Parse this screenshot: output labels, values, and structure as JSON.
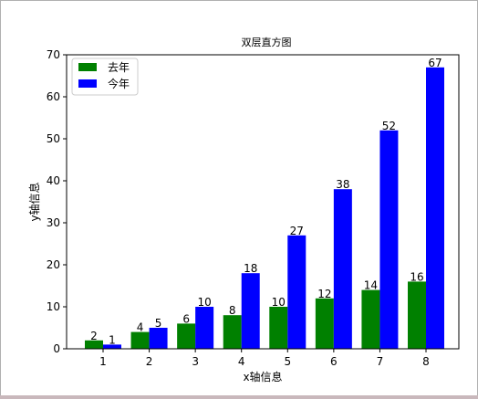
{
  "chart_data": {
    "type": "bar",
    "title": "双层直方图",
    "xlabel": "x轴信息",
    "ylabel": "y轴信息",
    "categories": [
      "1",
      "2",
      "3",
      "4",
      "5",
      "6",
      "7",
      "8"
    ],
    "series": [
      {
        "name": "去年",
        "color": "#008000",
        "values": [
          2,
          4,
          6,
          8,
          10,
          12,
          14,
          16
        ]
      },
      {
        "name": "今年",
        "color": "#0000ff",
        "values": [
          1,
          5,
          10,
          18,
          27,
          38,
          52,
          67
        ]
      }
    ],
    "ylim": [
      0,
      70
    ],
    "yticks": [
      0,
      10,
      20,
      30,
      40,
      50,
      60,
      70
    ],
    "grid": false,
    "legend_position": "top-left"
  }
}
